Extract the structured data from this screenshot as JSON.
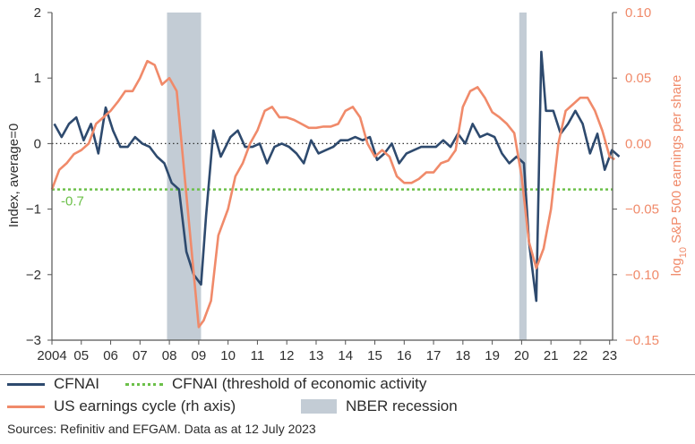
{
  "chart_data": {
    "type": "line",
    "ylabel_left": "Index, average=0",
    "ylabel_right_prefix": "log",
    "ylabel_right_sub": "10",
    "ylabel_right_suffix": " S&P 500 earnings per share",
    "x_ticks": [
      "2004",
      "05",
      "06",
      "07",
      "08",
      "09",
      "10",
      "11",
      "12",
      "13",
      "14",
      "15",
      "16",
      "17",
      "18",
      "19",
      "20",
      "21",
      "22",
      "23"
    ],
    "x_tick_years": [
      2004,
      2005,
      2006,
      2007,
      2008,
      2009,
      2010,
      2011,
      2012,
      2013,
      2014,
      2015,
      2016,
      2017,
      2018,
      2019,
      2020,
      2021,
      2022,
      2023
    ],
    "xlim": [
      2004.0,
      2023.1
    ],
    "ylim_left": [
      -3,
      2
    ],
    "ylim_right": [
      -0.15,
      0.1
    ],
    "y_ticks_left": [
      "2",
      "1",
      "0",
      "−1",
      "−2",
      "−3"
    ],
    "y_ticks_left_values": [
      2,
      1,
      0,
      -1,
      -2,
      -3
    ],
    "y_ticks_right": [
      "0.10",
      "0.05",
      "0.00",
      "−0.05",
      "−0.10",
      "−0.15"
    ],
    "y_ticks_right_values": [
      0.1,
      0.05,
      0.0,
      -0.05,
      -0.1,
      -0.15
    ],
    "zero_line": true,
    "threshold": {
      "value": -0.7,
      "label": "-0.7",
      "color": "#6cc04a"
    },
    "recessions": [
      [
        2007.92,
        2009.08
      ],
      [
        2019.92,
        2020.17
      ]
    ],
    "series": [
      {
        "name": "CFNAI",
        "axis": "left",
        "color": "#2e4a6e",
        "x": [
          2004.08,
          2004.33,
          2004.58,
          2004.83,
          2005.08,
          2005.33,
          2005.58,
          2005.83,
          2006.08,
          2006.33,
          2006.58,
          2006.83,
          2007.08,
          2007.33,
          2007.58,
          2007.83,
          2008.08,
          2008.33,
          2008.58,
          2008.83,
          2009.08,
          2009.25,
          2009.5,
          2009.75,
          2010.08,
          2010.33,
          2010.58,
          2010.83,
          2011.08,
          2011.33,
          2011.58,
          2011.83,
          2012.08,
          2012.33,
          2012.58,
          2012.83,
          2013.08,
          2013.33,
          2013.58,
          2013.83,
          2014.08,
          2014.33,
          2014.58,
          2014.83,
          2015.08,
          2015.33,
          2015.58,
          2015.83,
          2016.08,
          2016.33,
          2016.58,
          2016.83,
          2017.08,
          2017.33,
          2017.58,
          2017.83,
          2018.08,
          2018.33,
          2018.58,
          2018.83,
          2019.08,
          2019.33,
          2019.58,
          2019.83,
          2020.08,
          2020.25,
          2020.5,
          2020.67,
          2020.83,
          2021.08,
          2021.33,
          2021.58,
          2021.83,
          2022.08,
          2022.33,
          2022.58,
          2022.83,
          2023.08,
          2023.33
        ],
        "values": [
          0.3,
          0.1,
          0.3,
          0.4,
          0.05,
          0.3,
          -0.15,
          0.55,
          0.2,
          -0.05,
          -0.05,
          0.1,
          0.0,
          -0.05,
          -0.2,
          -0.3,
          -0.6,
          -0.7,
          -1.65,
          -2.0,
          -2.15,
          -1.1,
          0.2,
          -0.2,
          0.1,
          0.2,
          -0.05,
          -0.05,
          0.0,
          -0.3,
          -0.05,
          0.0,
          -0.05,
          -0.15,
          -0.3,
          0.05,
          -0.15,
          -0.1,
          -0.05,
          0.05,
          0.05,
          0.1,
          0.05,
          0.1,
          -0.25,
          -0.15,
          0.0,
          -0.3,
          -0.15,
          -0.1,
          -0.05,
          -0.05,
          -0.05,
          0.05,
          -0.05,
          0.15,
          0.0,
          0.3,
          0.1,
          0.15,
          0.1,
          -0.15,
          -0.3,
          -0.2,
          -0.3,
          -1.5,
          -2.4,
          1.4,
          0.5,
          0.5,
          0.15,
          0.3,
          0.5,
          0.3,
          -0.15,
          0.15,
          -0.4,
          -0.1,
          -0.2
        ]
      },
      {
        "name": "US earnings cycle (rh axis)",
        "axis": "right",
        "color": "#f08a6a",
        "x": [
          2004.0,
          2004.25,
          2004.5,
          2004.75,
          2005.0,
          2005.25,
          2005.5,
          2005.75,
          2006.0,
          2006.25,
          2006.5,
          2006.75,
          2007.0,
          2007.25,
          2007.5,
          2007.75,
          2008.0,
          2008.25,
          2008.5,
          2008.75,
          2009.0,
          2009.17,
          2009.42,
          2009.67,
          2010.0,
          2010.25,
          2010.5,
          2010.75,
          2011.0,
          2011.25,
          2011.5,
          2011.75,
          2012.0,
          2012.25,
          2012.5,
          2012.75,
          2013.0,
          2013.25,
          2013.5,
          2013.75,
          2014.0,
          2014.25,
          2014.5,
          2014.75,
          2015.0,
          2015.25,
          2015.5,
          2015.75,
          2016.0,
          2016.25,
          2016.5,
          2016.75,
          2017.0,
          2017.25,
          2017.5,
          2017.75,
          2018.0,
          2018.25,
          2018.5,
          2018.75,
          2019.0,
          2019.25,
          2019.5,
          2019.75,
          2020.0,
          2020.25,
          2020.5,
          2020.75,
          2021.0,
          2021.25,
          2021.5,
          2021.75,
          2022.0,
          2022.25,
          2022.5,
          2022.75,
          2023.0,
          2023.17
        ],
        "values": [
          -0.035,
          -0.02,
          -0.015,
          -0.008,
          -0.005,
          0.0,
          0.015,
          0.02,
          0.025,
          0.032,
          0.04,
          0.04,
          0.05,
          0.063,
          0.06,
          0.045,
          0.05,
          0.04,
          -0.02,
          -0.08,
          -0.14,
          -0.135,
          -0.12,
          -0.07,
          -0.05,
          -0.025,
          -0.015,
          0.0,
          0.01,
          0.025,
          0.028,
          0.02,
          0.02,
          0.018,
          0.015,
          0.012,
          0.012,
          0.013,
          0.013,
          0.015,
          0.025,
          0.028,
          0.02,
          0.0,
          -0.01,
          -0.005,
          -0.01,
          -0.025,
          -0.03,
          -0.03,
          -0.027,
          -0.022,
          -0.022,
          -0.015,
          -0.013,
          -0.005,
          0.028,
          0.04,
          0.043,
          0.035,
          0.024,
          0.02,
          0.015,
          0.008,
          -0.025,
          -0.075,
          -0.095,
          -0.08,
          -0.05,
          0.0,
          0.025,
          0.03,
          0.035,
          0.035,
          0.025,
          0.01,
          -0.01,
          -0.012
        ]
      }
    ]
  },
  "legend": {
    "cfnai": "CFNAI",
    "threshold": "CFNAI (threshold of economic activity",
    "earnings": "US earnings cycle (rh axis)",
    "recession": "NBER recession"
  },
  "source": "Sources: Refinitiv and EFGAM. Data as at 12 July 2023",
  "colors": {
    "cfnai": "#2e4a6e",
    "earnings": "#f08a6a",
    "threshold": "#6cc04a",
    "recession": "#c3ccd5",
    "axis": "#555555"
  }
}
